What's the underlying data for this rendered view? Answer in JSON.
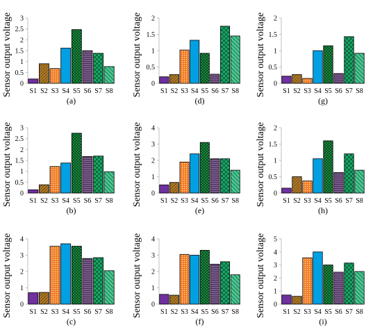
{
  "colors": {
    "axis": "#bfbfbf",
    "outline": "#000000",
    "series": [
      "#7030a0",
      "#b07a28",
      "#f47b20",
      "#00a0e3",
      "#1a9c45",
      "#7a5a8c",
      "#18a868",
      "#23a870"
    ],
    "patterns": [
      "solid",
      "diagonal-fine",
      "dots",
      "solid",
      "cross-hatch",
      "horizontal-lines",
      "large-checker",
      "diagonal-wide"
    ]
  },
  "chart_data": [
    {
      "type": "bar",
      "title": "",
      "caption": "(a)",
      "ylabel": "Sensor output voltage",
      "xlabel": "",
      "categories": [
        "S1",
        "S2",
        "S3",
        "S4",
        "S5",
        "S6",
        "S7",
        "S8"
      ],
      "values": [
        0.2,
        0.9,
        0.68,
        1.62,
        2.47,
        1.5,
        1.38,
        0.77
      ],
      "ylim": [
        0,
        3
      ],
      "yticks": [
        "0",
        "0.5",
        "1",
        "1.5",
        "2",
        "2.5",
        "3"
      ],
      "ytick_values": [
        0,
        0.5,
        1,
        1.5,
        2,
        2.5,
        3
      ],
      "grid": false
    },
    {
      "type": "bar",
      "title": "",
      "caption": "(d)",
      "ylabel": "Sensor output voltage",
      "xlabel": "",
      "categories": [
        "S1",
        "S2",
        "S3",
        "S4",
        "S5",
        "S6",
        "S7",
        "S8"
      ],
      "values": [
        0.2,
        0.27,
        1.02,
        1.32,
        0.92,
        0.28,
        1.75,
        1.45
      ],
      "ylim": [
        0,
        2
      ],
      "yticks": [
        "0",
        "0.5",
        "1",
        "1.5",
        "2"
      ],
      "ytick_values": [
        0,
        0.5,
        1,
        1.5,
        2
      ],
      "grid": false
    },
    {
      "type": "bar",
      "title": "",
      "caption": "(g)",
      "ylabel": "Sensor output voltage",
      "xlabel": "",
      "categories": [
        "S1",
        "S2",
        "S3",
        "S4",
        "S5",
        "S6",
        "S7",
        "S8"
      ],
      "values": [
        0.22,
        0.27,
        0.15,
        1.0,
        1.15,
        0.3,
        1.43,
        0.92
      ],
      "ylim": [
        0,
        2
      ],
      "yticks": [
        "0",
        "0.5",
        "1",
        "1.5",
        "2"
      ],
      "ytick_values": [
        0,
        0.5,
        1,
        1.5,
        2
      ],
      "grid": false
    },
    {
      "type": "bar",
      "title": "",
      "caption": "(b)",
      "ylabel": "Sensor output voltage",
      "xlabel": "",
      "categories": [
        "S1",
        "S2",
        "S3",
        "S4",
        "S5",
        "S6",
        "S7",
        "S8"
      ],
      "values": [
        0.15,
        0.38,
        1.22,
        1.38,
        2.75,
        1.68,
        1.7,
        0.98
      ],
      "ylim": [
        0,
        3
      ],
      "yticks": [
        "0",
        "0.5",
        "1",
        "1.5",
        "2",
        "2.5",
        "3"
      ],
      "ytick_values": [
        0,
        0.5,
        1,
        1.5,
        2,
        2.5,
        3
      ],
      "grid": false
    },
    {
      "type": "bar",
      "title": "",
      "caption": "(e)",
      "ylabel": "Sensor output voltage",
      "xlabel": "",
      "categories": [
        "S1",
        "S2",
        "S3",
        "S4",
        "S5",
        "S6",
        "S7",
        "S8"
      ],
      "values": [
        0.5,
        0.65,
        1.9,
        2.4,
        3.1,
        2.1,
        2.1,
        1.4
      ],
      "ylim": [
        0,
        4
      ],
      "yticks": [
        "0",
        "1",
        "2",
        "3",
        "4"
      ],
      "ytick_values": [
        0,
        1,
        2,
        3,
        4
      ],
      "grid": false
    },
    {
      "type": "bar",
      "title": "",
      "caption": "(h)",
      "ylabel": "Sensor output voltage",
      "xlabel": "",
      "categories": [
        "S1",
        "S2",
        "S3",
        "S4",
        "S5",
        "S6",
        "S7",
        "S8"
      ],
      "values": [
        0.15,
        0.5,
        0.37,
        1.05,
        1.6,
        0.63,
        1.2,
        0.7
      ],
      "ylim": [
        0,
        2
      ],
      "yticks": [
        "0",
        "0.5",
        "1",
        "1.5",
        "2"
      ],
      "ytick_values": [
        0,
        0.5,
        1,
        1.5,
        2
      ],
      "grid": false
    },
    {
      "type": "bar",
      "title": "",
      "caption": "(c)",
      "ylabel": "Sensor output voltage",
      "xlabel": "",
      "categories": [
        "S1",
        "S2",
        "S3",
        "S4",
        "S5",
        "S6",
        "S7",
        "S8"
      ],
      "values": [
        0.7,
        0.72,
        3.55,
        3.7,
        3.55,
        2.8,
        2.85,
        2.05
      ],
      "ylim": [
        0,
        4
      ],
      "yticks": [
        "0",
        "1",
        "2",
        "3",
        "4"
      ],
      "ytick_values": [
        0,
        1,
        2,
        3,
        4
      ],
      "grid": false
    },
    {
      "type": "bar",
      "title": "",
      "caption": "(f)",
      "ylabel": "Sensor output voltage",
      "xlabel": "",
      "categories": [
        "S1",
        "S2",
        "S3",
        "S4",
        "S5",
        "S6",
        "S7",
        "S8"
      ],
      "values": [
        0.6,
        0.55,
        3.05,
        3.0,
        3.3,
        2.45,
        2.6,
        1.8
      ],
      "ylim": [
        0,
        4
      ],
      "yticks": [
        "0",
        "1",
        "2",
        "3",
        "4"
      ],
      "ytick_values": [
        0,
        1,
        2,
        3,
        4
      ],
      "grid": false
    },
    {
      "type": "bar",
      "title": "",
      "caption": "(i)",
      "ylabel": "Sensor output voltage",
      "xlabel": "",
      "categories": [
        "S1",
        "S2",
        "S3",
        "S4",
        "S5",
        "S6",
        "S7",
        "S8"
      ],
      "values": [
        0.7,
        0.6,
        3.55,
        4.0,
        3.0,
        2.45,
        3.15,
        2.5
      ],
      "ylim": [
        0,
        5
      ],
      "yticks": [
        "0",
        "1",
        "2",
        "3",
        "4",
        "5"
      ],
      "ytick_values": [
        0,
        1,
        2,
        3,
        4,
        5
      ],
      "grid": false
    }
  ]
}
